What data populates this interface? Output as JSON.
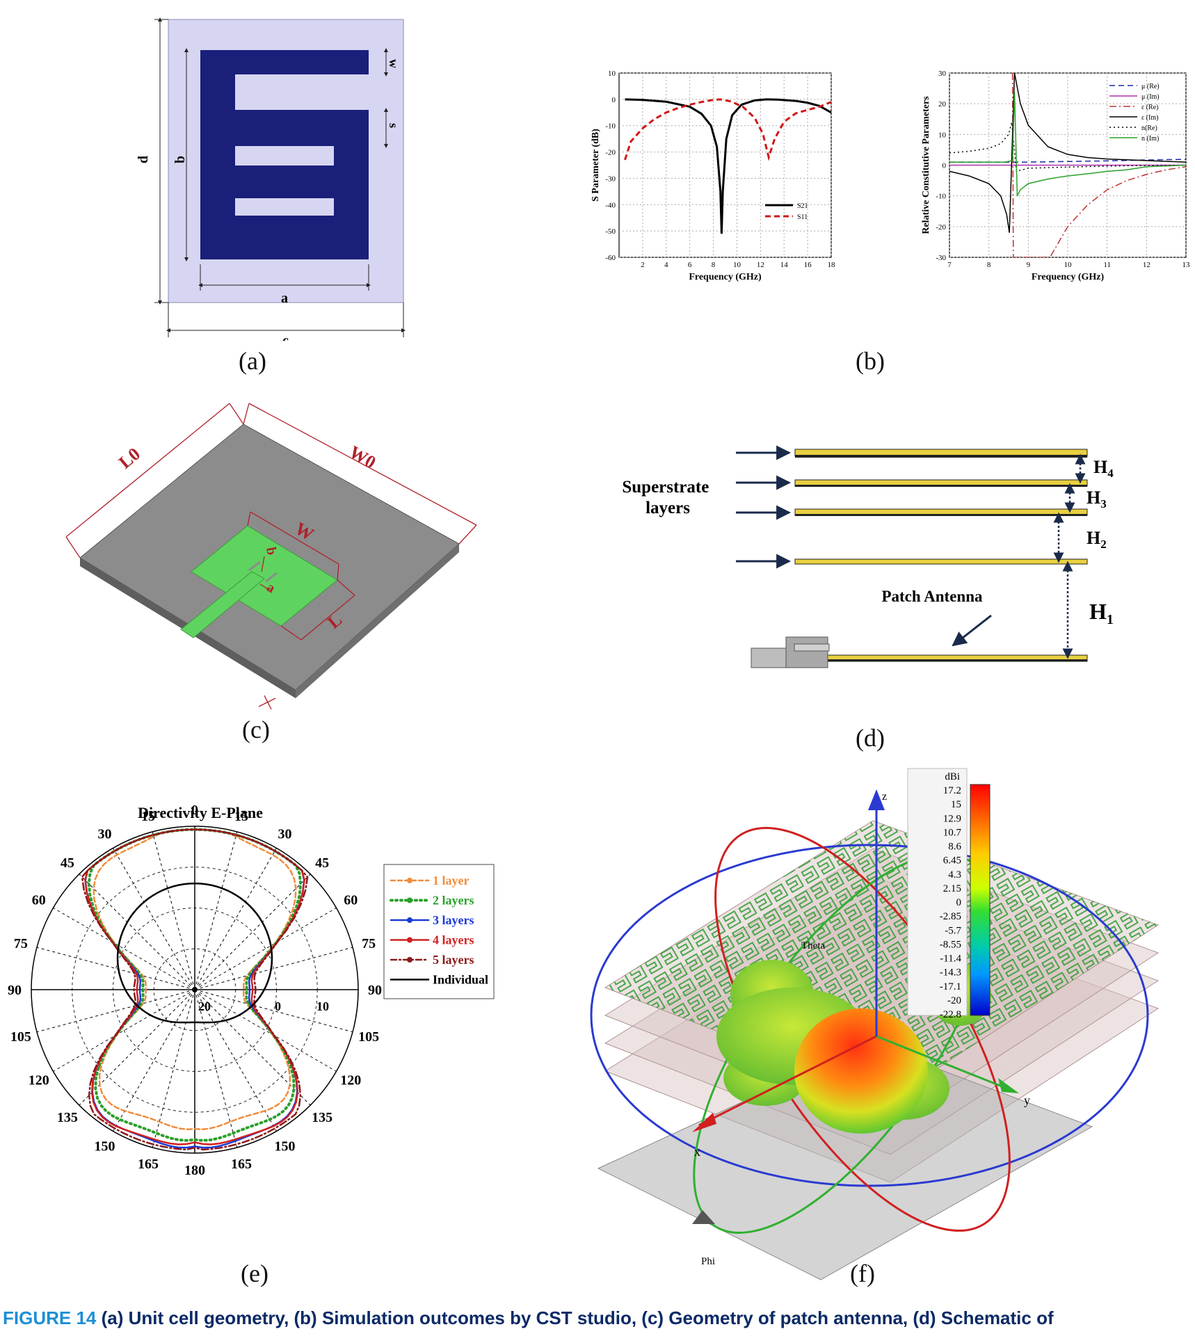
{
  "panels": {
    "a": {
      "label": "(a)",
      "dims": {
        "d": "d",
        "b": "b",
        "a": "a",
        "c": "c",
        "w": "w",
        "s": "s"
      },
      "colors": {
        "background": "#d6d6f3",
        "metal": "#1a1f7a"
      }
    },
    "b": {
      "label": "(b)",
      "chart_data": [
        {
          "type": "line",
          "xlabel": "Frequency (GHz)",
          "ylabel": "S Parameter (dB)",
          "xlim": [
            0,
            18
          ],
          "ylim": [
            -60,
            10
          ],
          "xticks": [
            "2",
            "4",
            "6",
            "8",
            "10",
            "12",
            "14",
            "16",
            "18"
          ],
          "yticks": [
            "10",
            "0",
            "-10",
            "-20",
            "-30",
            "-40",
            "-50",
            "-60"
          ],
          "legend_position": "bottom-right",
          "series": [
            {
              "name": "S21",
              "color": "#000000",
              "dash": "solid",
              "x": [
                0.5,
                2,
                4,
                6,
                7,
                7.8,
                8.3,
                8.6,
                8.7,
                8.8,
                9.1,
                9.6,
                10.4,
                11.5,
                12.5,
                13.5,
                15,
                16,
                17,
                18
              ],
              "y": [
                0,
                -0.2,
                -0.9,
                -2.8,
                -5.5,
                -10,
                -18,
                -35,
                -51,
                -35,
                -15,
                -6,
                -2,
                -0.4,
                0,
                -0.1,
                -0.6,
                -1.3,
                -2.5,
                -5
              ]
            },
            {
              "name": "S11",
              "color": "#d01818",
              "dash": "dashed",
              "x": [
                0.5,
                1,
                2,
                3,
                4,
                5,
                6,
                7,
                8,
                8.6,
                9.5,
                10.5,
                11.5,
                12.2,
                12.7,
                13.2,
                14,
                15,
                16,
                17,
                18
              ],
              "y": [
                -23,
                -16,
                -11,
                -7.5,
                -5,
                -3.3,
                -2,
                -1,
                -0.2,
                0,
                -0.8,
                -2.8,
                -7,
                -13,
                -22,
                -15,
                -8.5,
                -5.3,
                -4,
                -2.8,
                -1
              ]
            }
          ]
        },
        {
          "type": "line",
          "xlabel": "Frequency (GHz)",
          "ylabel": "Relative Constitutive Parameters",
          "xlim": [
            7,
            13
          ],
          "ylim": [
            -30,
            30
          ],
          "xticks": [
            "7",
            "8",
            "9",
            "10",
            "11",
            "12",
            "13"
          ],
          "yticks": [
            "30",
            "20",
            "10",
            "0",
            "-10",
            "-20",
            "-30"
          ],
          "legend_position": "top-right",
          "series": [
            {
              "name": "μ (Re)",
              "color": "#1a2aa8",
              "dash": "dashed",
              "x": [
                7,
                8,
                8.5,
                9,
                10,
                11,
                12,
                13
              ],
              "y": [
                1,
                1,
                1,
                1,
                1.2,
                1.4,
                1.7,
                1.9
              ]
            },
            {
              "name": "μ (Im)",
              "color": "#b030b0",
              "dash": "solid",
              "x": [
                7,
                8,
                8.5,
                9,
                10,
                11,
                12,
                13
              ],
              "y": [
                0,
                0,
                0,
                0,
                0,
                0,
                0,
                0
              ]
            },
            {
              "name": "ε (Re)",
              "color": "#c03030",
              "dash": "dashdot",
              "x": [
                8.6,
                8.62,
                9.55,
                10,
                10.5,
                11,
                11.5,
                12,
                12.5,
                13
              ],
              "y": [
                30,
                -30,
                -30,
                -20,
                -13,
                -8,
                -5,
                -3,
                -1.5,
                -0.5
              ]
            },
            {
              "name": "ε (Im)",
              "color": "#000000",
              "dash": "solid",
              "x": [
                7,
                7.5,
                8,
                8.3,
                8.45,
                8.52,
                8.65,
                8.8,
                9,
                9.5,
                10,
                10.5,
                11,
                12,
                13
              ],
              "y": [
                -2,
                -3.5,
                -6,
                -10,
                -16,
                -22,
                30,
                20,
                13,
                6,
                3.5,
                2.5,
                2,
                1.5,
                1
              ]
            },
            {
              "name": "n(Re)",
              "color": "#000000",
              "dash": "dotted",
              "x": [
                7,
                7.5,
                8,
                8.3,
                8.5,
                8.58,
                8.7,
                9,
                10,
                11,
                12,
                13
              ],
              "y": [
                4,
                4.5,
                5.5,
                7,
                10,
                14,
                -2,
                -1,
                -0.6,
                -0.3,
                -0.1,
                0
              ]
            },
            {
              "name": "n (Im)",
              "color": "#2aa02a",
              "dash": "solid",
              "x": [
                7,
                8,
                8.4,
                8.6,
                8.65,
                8.72,
                8.8,
                9,
                9.5,
                10,
                10.5,
                11,
                11.5,
                12,
                13
              ],
              "y": [
                1,
                1,
                1,
                1.5,
                24,
                -10,
                -8,
                -6,
                -4.5,
                -3.5,
                -2.8,
                -2,
                -1.5,
                -0.5,
                0
              ]
            }
          ]
        }
      ]
    },
    "c": {
      "label": "(c)",
      "dims": {
        "L0": "L0",
        "W0": "W0",
        "W": "W",
        "L": "L",
        "b": "b",
        "a": "a"
      },
      "colors": {
        "substrate": "#8c8c8c",
        "patch": "#5fd35f",
        "dim": "#b0202a"
      }
    },
    "d": {
      "label": "(d)",
      "superstrate_label": "Superstrate\nlayers",
      "patch_label": "Patch Antenna",
      "heights": [
        "H4",
        "H3",
        "H2",
        "H1"
      ]
    },
    "e": {
      "label": "(e)",
      "chart_data": {
        "type": "polar",
        "title": "Directivity E-Plane",
        "angle_labels": [
          "0",
          "15",
          "30",
          "45",
          "60",
          "75",
          "90",
          "105",
          "120",
          "135",
          "150",
          "165",
          "180"
        ],
        "radial_labels": [
          "20",
          "0",
          "10"
        ],
        "legend_position": "right",
        "series": [
          {
            "name": "1 layer",
            "color": "#f08c3c",
            "style": "dashed-diamond"
          },
          {
            "name": "2 layers",
            "color": "#2aa02a",
            "style": "dotted-triangle"
          },
          {
            "name": "3 layers",
            "color": "#1a3ad8",
            "style": "solid-square"
          },
          {
            "name": "4 layers",
            "color": "#d02020",
            "style": "solid-triangle"
          },
          {
            "name": "5 layers",
            "color": "#8b1a1a",
            "style": "dashdot-diamond"
          },
          {
            "name": "Individual",
            "color": "#000000",
            "style": "solid"
          }
        ]
      }
    },
    "f": {
      "label": "(f)",
      "colorbar": {
        "unit": "dBi",
        "values": [
          "17.2",
          "15",
          "12.9",
          "10.7",
          "8.6",
          "6.45",
          "4.3",
          "2.15",
          "0",
          "-2.85",
          "-5.7",
          "-8.55",
          "-11.4",
          "-14.3",
          "-17.1",
          "-20",
          "-22.8"
        ]
      },
      "axes_labels": {
        "z": "z",
        "x": "x",
        "y": "y",
        "theta": "Theta",
        "phi": "Phi"
      }
    }
  },
  "caption": {
    "figure_label": "FIGURE 14",
    "text": "(a) Unit cell geometry, (b) Simulation outcomes by CST studio, (c) Geometry of patch antenna, (d) Schematic of"
  }
}
